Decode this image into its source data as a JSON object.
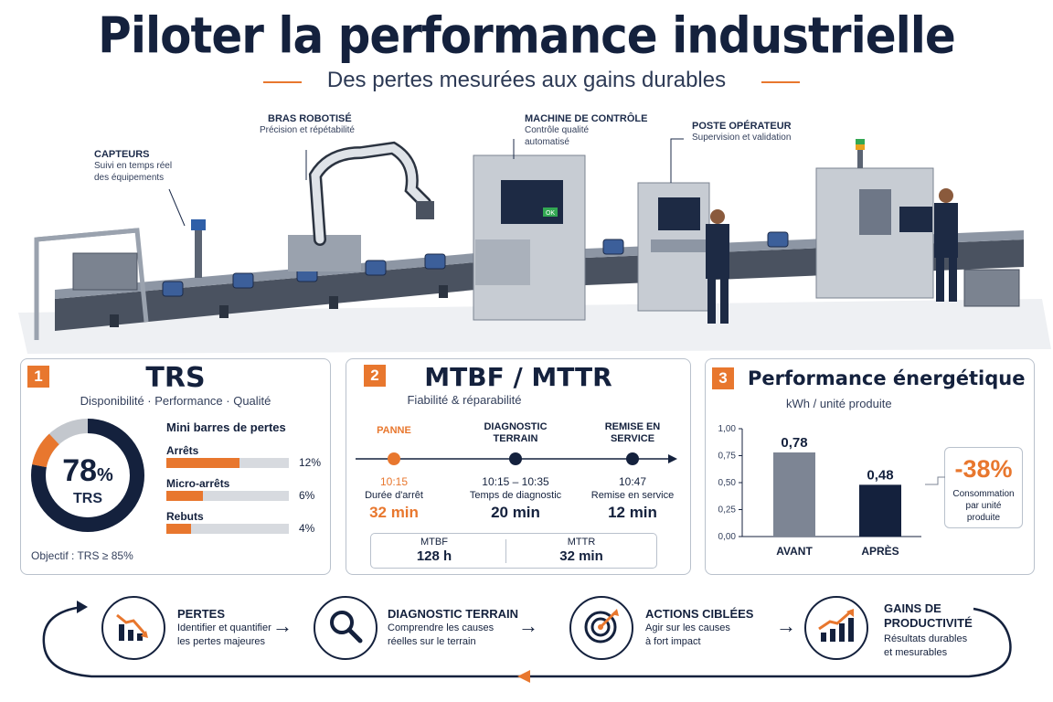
{
  "header": {
    "title": "Piloter la performance industrielle",
    "subtitle": "Des pertes mesurées aux gains durables"
  },
  "callouts": {
    "capteurs": {
      "title": "CAPTEURS",
      "lines": [
        "Suivi en temps réel",
        "des équipements"
      ]
    },
    "bras": {
      "title": "BRAS ROBOTISÉ",
      "lines": [
        "Précision et répétabilité"
      ]
    },
    "machine": {
      "title": "MACHINE DE CONTRÔLE",
      "lines": [
        "Contrôle qualité",
        "automatisé"
      ]
    },
    "poste": {
      "title": "POSTE OPÉRATEUR",
      "lines": [
        "Supervision et validation"
      ]
    },
    "screen_ok": "OK"
  },
  "trs": {
    "number": "1",
    "title": "TRS",
    "subtitle": "Disponibilité · Performance · Qualité",
    "value": "78",
    "unit": "%",
    "gauge_label": "TRS",
    "gauge_fraction": 0.78,
    "losses_title": "Mini barres de pertes",
    "losses": [
      {
        "label": "Arrêts",
        "value": "12%",
        "fraction": 0.12
      },
      {
        "label": "Micro-arrêts",
        "value": "6%",
        "fraction": 0.06
      },
      {
        "label": "Rebuts",
        "value": "4%",
        "fraction": 0.04
      }
    ],
    "objective": "Objectif : TRS ≥ 85%"
  },
  "mtbf": {
    "number": "2",
    "title": "MTBF / MTTR",
    "subtitle": "Fiabilité & réparabilité",
    "events": [
      {
        "label": "PANNE",
        "time": "10:15",
        "desc": "Durée d'arrêt",
        "value": "32 min",
        "accent": true
      },
      {
        "label": "DIAGNOSTIC TERRAIN",
        "time": "10:15 – 10:35",
        "desc": "Temps de diagnostic",
        "value": "20 min",
        "accent": false
      },
      {
        "label": "REMISE EN SERVICE",
        "time": "10:47",
        "desc": "Remise en service",
        "value": "12 min",
        "accent": false
      }
    ],
    "summary": [
      {
        "label": "MTBF",
        "value": "128 h"
      },
      {
        "label": "MTTR",
        "value": "32 min"
      }
    ]
  },
  "energy": {
    "number": "3",
    "title": "Performance énergétique",
    "subtitle": "kWh / unité produite",
    "chart_data": {
      "type": "bar",
      "title": "Performance énergétique",
      "ylabel": "kWh / unité produite",
      "categories": [
        "AVANT",
        "APRÈS"
      ],
      "values": [
        0.78,
        0.48
      ],
      "value_labels": [
        "0,78",
        "0,48"
      ],
      "ylim": [
        0,
        1
      ],
      "yticks": [
        "1,00",
        "0,75",
        "0,50",
        "0,25",
        "0,00"
      ],
      "colors": [
        "#7d8594",
        "#14213d"
      ],
      "grid": false
    },
    "delta": "-38%",
    "delta_desc": [
      "Consommation",
      "par unité",
      "produite"
    ]
  },
  "process": {
    "steps": [
      {
        "title": "PERTES",
        "desc": [
          "Identifier et quantifier",
          "les pertes majeures"
        ],
        "icon": "chart-down-icon"
      },
      {
        "title": "DIAGNOSTIC TERRAIN",
        "desc": [
          "Comprendre les causes",
          "réelles sur le terrain"
        ],
        "icon": "magnifier-icon"
      },
      {
        "title": "ACTIONS CIBLÉES",
        "desc": [
          "Agir sur les causes",
          "à fort impact"
        ],
        "icon": "target-icon"
      },
      {
        "title": "GAINS DE PRODUCTIVITÉ",
        "desc": [
          "Résultats durables",
          "et mesurables"
        ],
        "icon": "chart-up-icon"
      }
    ]
  },
  "colors": {
    "accent": "#e8772e",
    "navy": "#14213d",
    "grey": "#7d8594"
  }
}
